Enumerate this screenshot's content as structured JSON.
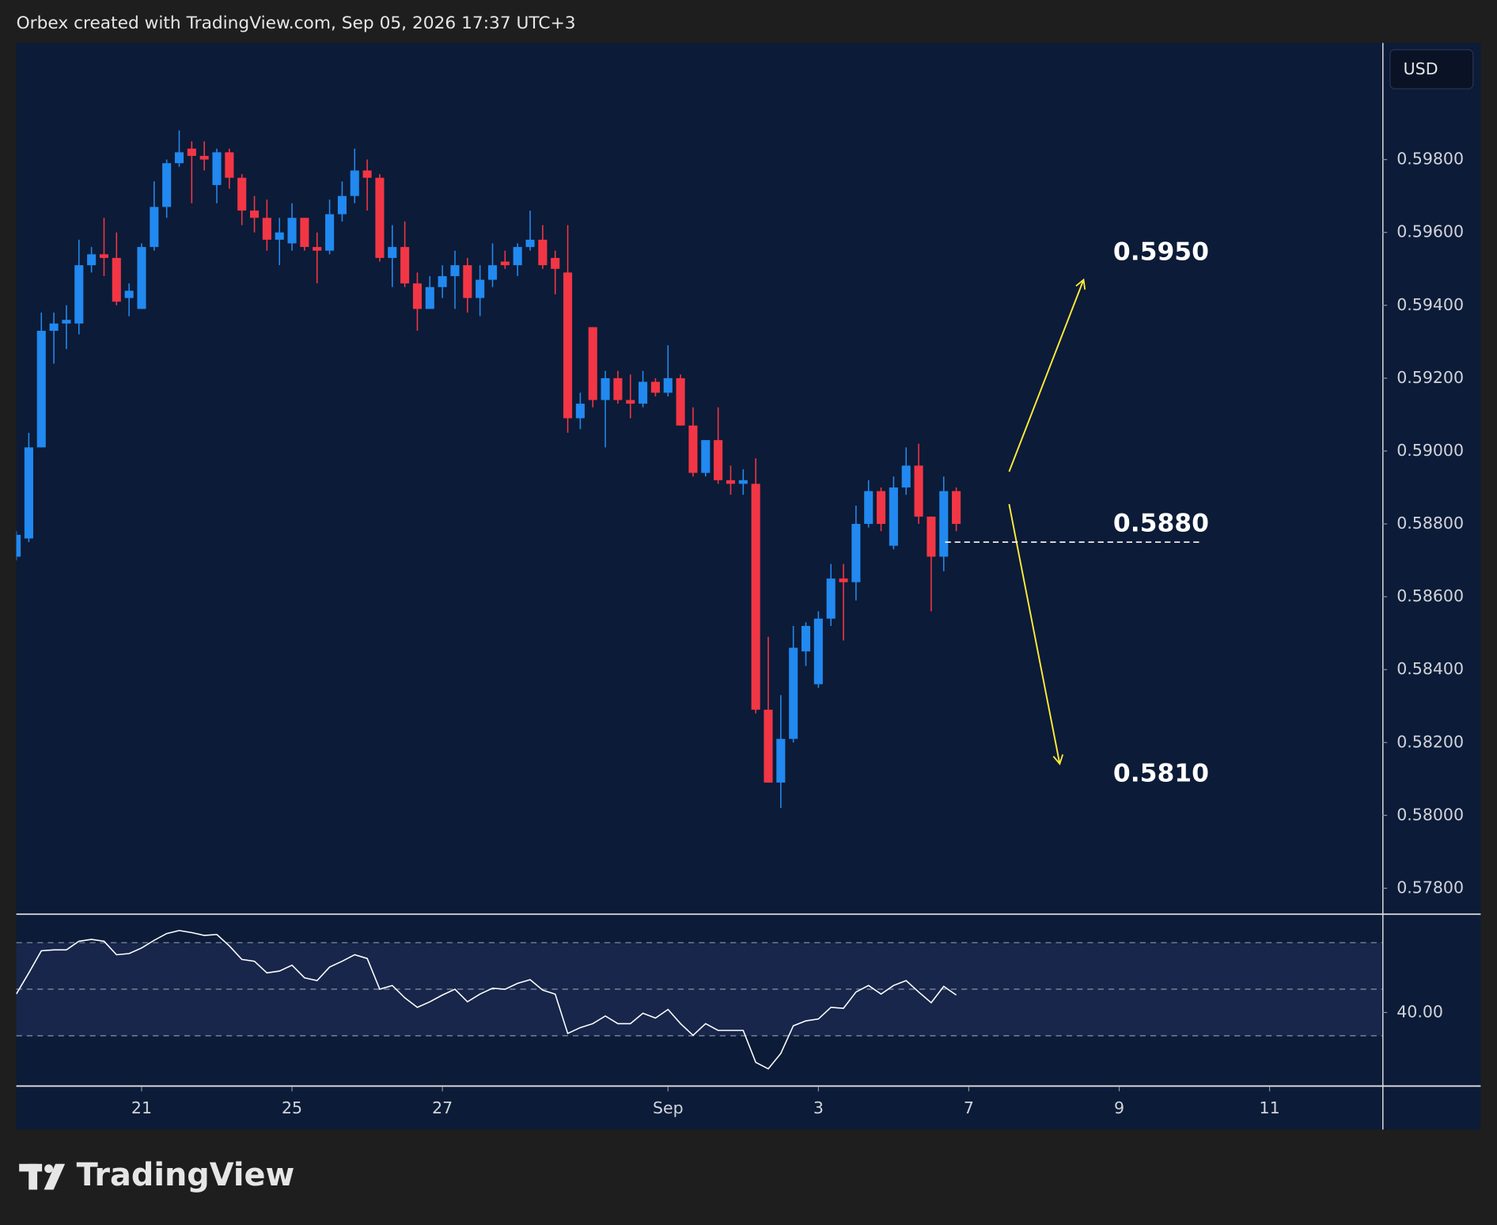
{
  "header": "Orbex created with TradingView.com, Sep 05, 2026 17:37 UTC+3",
  "currency": "USD",
  "brand": "TradingView",
  "chart_data": [
    {
      "type": "candlestick",
      "up_color": "#2189f0",
      "down_color": "#f23645",
      "grid": false,
      "xlim": [
        0,
        109
      ],
      "xticks": [
        {
          "value": 10,
          "label": "21"
        },
        {
          "value": 22,
          "label": "25"
        },
        {
          "value": 34,
          "label": "27"
        },
        {
          "value": 52,
          "label": "Sep"
        },
        {
          "value": 64,
          "label": "3"
        },
        {
          "value": 76,
          "label": "7"
        },
        {
          "value": 88,
          "label": "9"
        },
        {
          "value": 100,
          "label": "11"
        }
      ],
      "ylim": [
        0.5773,
        0.6012
      ],
      "yticks": [
        {
          "value": 0.598,
          "label": "0.59800"
        },
        {
          "value": 0.596,
          "label": "0.59600"
        },
        {
          "value": 0.594,
          "label": "0.59400"
        },
        {
          "value": 0.592,
          "label": "0.59200"
        },
        {
          "value": 0.59,
          "label": "0.59000"
        },
        {
          "value": 0.588,
          "label": "0.58800"
        },
        {
          "value": 0.586,
          "label": "0.58600"
        },
        {
          "value": 0.584,
          "label": "0.58400"
        },
        {
          "value": 0.582,
          "label": "0.58200"
        },
        {
          "value": 0.58,
          "label": "0.58000"
        },
        {
          "value": 0.578,
          "label": "0.57800"
        }
      ],
      "open": [
        0.5871,
        0.5876,
        0.5901,
        0.5933,
        0.5935,
        0.5935,
        0.5951,
        0.5954,
        0.5953,
        0.5942,
        0.5939,
        0.5956,
        0.5967,
        0.5979,
        0.5983,
        0.5981,
        0.5973,
        0.5982,
        0.5975,
        0.5966,
        0.5964,
        0.5958,
        0.5957,
        0.5964,
        0.5956,
        0.5955,
        0.5965,
        0.597,
        0.5977,
        0.5975,
        0.5953,
        0.5956,
        0.5946,
        0.5939,
        0.5945,
        0.5948,
        0.5951,
        0.5942,
        0.5947,
        0.5952,
        0.5951,
        0.5956,
        0.5958,
        0.5953,
        0.5949,
        0.5909,
        0.5934,
        0.5914,
        0.592,
        0.5914,
        0.5913,
        0.5919,
        0.5916,
        0.592,
        0.5907,
        0.5894,
        0.5903,
        0.5892,
        0.5891,
        0.5891,
        0.5829,
        0.5809,
        0.5821,
        0.5845,
        0.5836,
        0.5854,
        0.5865,
        0.5864,
        0.588,
        0.5889,
        0.5874,
        0.589,
        0.5896,
        0.5882,
        0.5871,
        0.5889
      ],
      "high": [
        0.5878,
        0.5905,
        0.5938,
        0.5938,
        0.594,
        0.5958,
        0.5956,
        0.5964,
        0.596,
        0.5946,
        0.5957,
        0.5974,
        0.598,
        0.5988,
        0.5985,
        0.5985,
        0.5983,
        0.5983,
        0.5976,
        0.597,
        0.5969,
        0.5964,
        0.5968,
        0.5964,
        0.596,
        0.5969,
        0.5974,
        0.5983,
        0.598,
        0.5976,
        0.5962,
        0.5963,
        0.5949,
        0.5948,
        0.5951,
        0.5955,
        0.5953,
        0.5951,
        0.5957,
        0.5955,
        0.5957,
        0.5966,
        0.5962,
        0.5955,
        0.5962,
        0.5916,
        0.5934,
        0.5922,
        0.5922,
        0.5921,
        0.5922,
        0.592,
        0.5929,
        0.5921,
        0.5912,
        0.5903,
        0.5912,
        0.5896,
        0.5895,
        0.5898,
        0.5849,
        0.5833,
        0.5852,
        0.5853,
        0.5856,
        0.5869,
        0.5869,
        0.5885,
        0.5892,
        0.589,
        0.5893,
        0.5901,
        0.5902,
        0.5882,
        0.5893,
        0.589
      ],
      "low": [
        0.587,
        0.5875,
        0.5901,
        0.5924,
        0.5928,
        0.5932,
        0.5949,
        0.5948,
        0.594,
        0.5937,
        0.5939,
        0.5955,
        0.5964,
        0.5978,
        0.5968,
        0.5977,
        0.5968,
        0.5972,
        0.5962,
        0.596,
        0.5955,
        0.5951,
        0.5955,
        0.5955,
        0.5946,
        0.5954,
        0.5963,
        0.5968,
        0.5966,
        0.5952,
        0.5945,
        0.5945,
        0.5933,
        0.5939,
        0.5942,
        0.5939,
        0.5938,
        0.5937,
        0.5945,
        0.595,
        0.5948,
        0.5955,
        0.595,
        0.5943,
        0.5905,
        0.5906,
        0.5912,
        0.5901,
        0.5913,
        0.5909,
        0.5912,
        0.5915,
        0.5915,
        0.5907,
        0.5893,
        0.5893,
        0.5891,
        0.5888,
        0.5888,
        0.5828,
        0.5809,
        0.5802,
        0.582,
        0.5841,
        0.5835,
        0.5852,
        0.5848,
        0.5859,
        0.5879,
        0.5878,
        0.5873,
        0.5888,
        0.588,
        0.5856,
        0.5867,
        0.5878
      ],
      "close": [
        0.5877,
        0.5901,
        0.5933,
        0.5935,
        0.5936,
        0.5951,
        0.5954,
        0.5953,
        0.5941,
        0.5944,
        0.5956,
        0.5967,
        0.5979,
        0.5982,
        0.5981,
        0.598,
        0.5982,
        0.5975,
        0.5966,
        0.5964,
        0.5958,
        0.596,
        0.5964,
        0.5956,
        0.5955,
        0.5965,
        0.597,
        0.5977,
        0.5975,
        0.5953,
        0.5956,
        0.5946,
        0.5939,
        0.5945,
        0.5948,
        0.5951,
        0.5942,
        0.5947,
        0.5951,
        0.5951,
        0.5956,
        0.5958,
        0.5951,
        0.595,
        0.5909,
        0.5913,
        0.5914,
        0.592,
        0.5914,
        0.5913,
        0.5919,
        0.5916,
        0.592,
        0.5907,
        0.5894,
        0.5903,
        0.5892,
        0.5891,
        0.5892,
        0.5829,
        0.5809,
        0.5821,
        0.5846,
        0.5852,
        0.5854,
        0.5865,
        0.5864,
        0.588,
        0.5889,
        0.588,
        0.589,
        0.5896,
        0.5882,
        0.5871,
        0.5889,
        0.588
      ],
      "level": 0.5875,
      "annotations": [
        "0.5950",
        "0.5880",
        "0.5810"
      ],
      "annotation_color": "#ffeb3b"
    },
    {
      "type": "line",
      "color": "#ffffff",
      "xlim": [
        0,
        109
      ],
      "ylim": [
        8.6,
        82
      ],
      "yticks": [
        {
          "value": 40,
          "label": "40.00"
        }
      ],
      "levels": [
        70,
        50,
        30
      ],
      "values": [
        47.9,
        57.0,
        66.5,
        66.9,
        66.9,
        70.6,
        71.4,
        70.6,
        64.8,
        65.3,
        67.7,
        71.0,
        73.9,
        75.2,
        74.3,
        73.1,
        73.5,
        68.6,
        62.8,
        62.0,
        57.0,
        57.8,
        60.3,
        54.9,
        53.7,
        59.5,
        62.0,
        64.8,
        63.2,
        50.0,
        51.6,
        46.3,
        42.2,
        44.6,
        47.5,
        50.0,
        44.6,
        47.9,
        50.4,
        50.0,
        52.5,
        54.1,
        49.6,
        47.9,
        31.0,
        33.5,
        35.2,
        38.5,
        35.2,
        35.2,
        39.7,
        37.6,
        41.3,
        35.2,
        30.2,
        35.2,
        32.3,
        32.3,
        32.3,
        18.6,
        15.8,
        22.4,
        34.3,
        36.4,
        37.2,
        42.2,
        41.8,
        48.8,
        51.6,
        47.9,
        51.6,
        53.7,
        48.8,
        44.2,
        51.2,
        47.5
      ]
    }
  ]
}
